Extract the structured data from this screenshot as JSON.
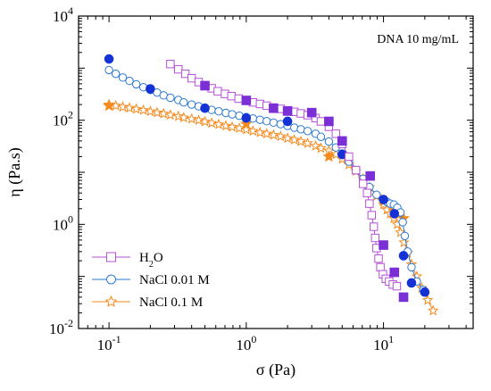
{
  "chart_data": {
    "type": "scatter",
    "annotation": "DNA 10 mg/mL",
    "xlabel": "σ (Pa)",
    "ylabel": "η (Pa.s)",
    "xscale": "log",
    "yscale": "log",
    "xlim": [
      0.06,
      45
    ],
    "ylim": [
      0.01,
      10000
    ],
    "x_ticks": [
      {
        "value": 0.1,
        "base": "10",
        "exp": "-1"
      },
      {
        "value": 1,
        "base": "10",
        "exp": "0"
      },
      {
        "value": 10,
        "base": "10",
        "exp": "1"
      }
    ],
    "y_ticks": [
      {
        "value": 0.01,
        "base": "10",
        "exp": "-2"
      },
      {
        "value": 1,
        "base": "10",
        "exp": "0"
      },
      {
        "value": 100,
        "base": "10",
        "exp": "2"
      },
      {
        "value": 10000,
        "base": "10",
        "exp": "4"
      }
    ],
    "legend_position": "bottom-left",
    "series": [
      {
        "name": "H2O",
        "legend_main": "H",
        "legend_sub": "2",
        "legend_tail": "O",
        "color": "#b44fd6",
        "fill_color": "#7b2fd6",
        "marker": "square",
        "open": {
          "x": [
            0.28,
            0.32,
            0.36,
            0.4,
            0.45,
            0.5,
            0.56,
            0.62,
            0.7,
            0.78,
            0.88,
            1.0,
            1.12,
            1.26,
            1.41,
            1.58,
            1.78,
            2.0,
            2.24,
            2.5,
            2.8,
            3.2,
            3.5,
            4.0,
            4.5,
            5.0,
            5.6,
            6.3,
            7.1,
            7.6,
            7.9,
            8.2,
            8.5,
            8.7,
            8.9,
            9.2,
            9.5,
            9.9,
            10.4,
            11.0,
            11.7,
            12.5
          ],
          "y": [
            1200,
            950,
            780,
            640,
            540,
            470,
            410,
            360,
            320,
            290,
            260,
            240,
            220,
            205,
            190,
            175,
            165,
            155,
            145,
            135,
            125,
            110,
            95,
            75,
            55,
            35,
            20,
            11,
            6,
            4,
            2.5,
            1.5,
            0.9,
            0.55,
            0.35,
            0.22,
            0.15,
            0.11,
            0.09,
            0.08,
            0.07,
            0.065
          ]
        },
        "filled": {
          "x": [
            0.5,
            1.0,
            1.58,
            2.0,
            3.0,
            4.0,
            5.0,
            8.0,
            10.0,
            12.0,
            14.0
          ],
          "y": [
            460,
            240,
            170,
            150,
            140,
            95,
            40,
            8.5,
            0.4,
            0.12,
            0.04
          ]
        }
      },
      {
        "name": "NaCl 0.01 M",
        "color": "#2b79d1",
        "fill_color": "#1432d6",
        "marker": "circle",
        "open": {
          "x": [
            0.1,
            0.112,
            0.126,
            0.141,
            0.158,
            0.178,
            0.2,
            0.224,
            0.25,
            0.28,
            0.32,
            0.35,
            0.4,
            0.45,
            0.5,
            0.56,
            0.63,
            0.71,
            0.79,
            0.89,
            1.0,
            1.12,
            1.26,
            1.41,
            1.58,
            1.78,
            2.0,
            2.24,
            2.5,
            2.8,
            3.2,
            3.5,
            4.0,
            4.5,
            5.0,
            5.6,
            6.3,
            7.1,
            7.9,
            8.9,
            10.0,
            10.6,
            11.2,
            11.9,
            12.6,
            13.3,
            13.8,
            14.3,
            15.0,
            16.0,
            17.5,
            19.5
          ],
          "y": [
            920,
            780,
            660,
            570,
            490,
            430,
            380,
            340,
            300,
            270,
            245,
            220,
            200,
            185,
            170,
            158,
            148,
            138,
            130,
            122,
            115,
            108,
            102,
            96,
            90,
            84,
            78,
            72,
            67,
            62,
            55,
            48,
            39,
            30,
            23,
            16,
            11,
            7.5,
            5.2,
            3.7,
            3.0,
            2.7,
            2.5,
            2.4,
            2.1,
            1.7,
            1.1,
            0.6,
            0.3,
            0.15,
            0.08,
            0.055
          ]
        },
        "filled": {
          "x": [
            0.1,
            0.2,
            0.5,
            1.0,
            2.0,
            5.0,
            10.0,
            12.0,
            14.0,
            16.0,
            20.0
          ],
          "y": [
            1500,
            400,
            170,
            110,
            95,
            22,
            3.0,
            1.6,
            0.25,
            0.075,
            0.05
          ]
        }
      },
      {
        "name": "NaCl 0.1 M",
        "color": "#f58a1f",
        "fill_color": "#f58a1f",
        "marker": "star",
        "open": {
          "x": [
            0.1,
            0.112,
            0.126,
            0.141,
            0.158,
            0.178,
            0.2,
            0.224,
            0.25,
            0.28,
            0.32,
            0.35,
            0.4,
            0.45,
            0.5,
            0.56,
            0.63,
            0.71,
            0.79,
            0.89,
            1.0,
            1.12,
            1.26,
            1.41,
            1.58,
            1.78,
            2.0,
            2.24,
            2.5,
            2.8,
            3.2,
            3.5,
            4.0,
            4.5,
            5.0,
            5.6,
            6.3,
            7.1,
            7.9,
            8.9,
            10.0,
            10.6,
            11.2,
            11.9,
            12.6,
            13.3,
            14.1,
            15.0,
            16.0,
            17.5,
            19.0,
            21.0,
            23.0
          ],
          "y": [
            200,
            190,
            180,
            172,
            164,
            156,
            148,
            140,
            133,
            126,
            119,
            112,
            106,
            100,
            94,
            88,
            83,
            78,
            74,
            70,
            66,
            62,
            58,
            55,
            52,
            49,
            45,
            42,
            39,
            36,
            32,
            29,
            26,
            22,
            18,
            14,
            10.5,
            7.5,
            5.2,
            3.5,
            2.4,
            1.9,
            1.6,
            1.3,
            1.0,
            0.7,
            0.45,
            0.28,
            0.17,
            0.1,
            0.06,
            0.035,
            0.022
          ]
        },
        "filled": {
          "x": [
            0.1,
            1.0,
            4.0,
            10.0,
            12.0,
            14.0
          ],
          "y": [
            190,
            85,
            20,
            2.8,
            1.8,
            1.3
          ]
        }
      }
    ]
  }
}
